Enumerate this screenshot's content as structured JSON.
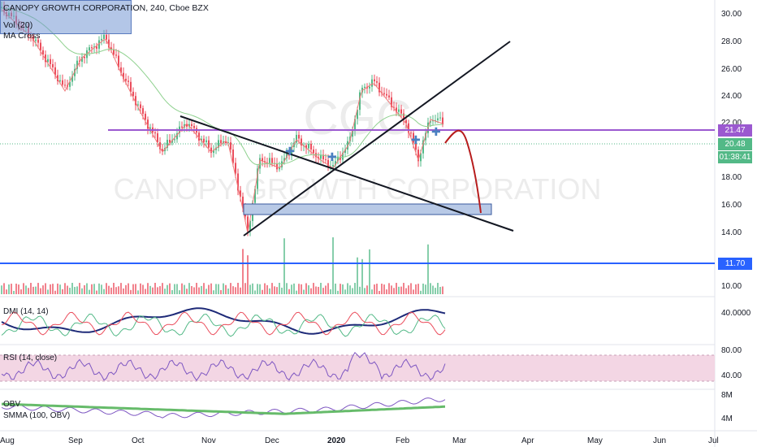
{
  "header": {
    "symbol_title": "CANOPY GROWTH CORPORATION, 240, Cboe BZX",
    "indicator_1": "Vol (20)",
    "indicator_2": "MA Cross"
  },
  "watermark": {
    "ticker": "CGC",
    "name": "CANOPY GROWTH CORPORATION"
  },
  "price_axis": {
    "labels": [
      "30.00",
      "28.00",
      "26.00",
      "24.00",
      "22.00",
      "18.00",
      "16.00",
      "14.00",
      "10.00"
    ],
    "tag_resistance": "21.47",
    "tag_last": "20.48",
    "tag_countdown": "01:38:41",
    "tag_support": "11.70"
  },
  "panes": {
    "dmi_label": "DMI (14, 14)",
    "dmi_axis": "40.0000",
    "rsi_label": "RSI (14, close)",
    "rsi_axis_top": "80.00",
    "rsi_axis_bottom": "40.00",
    "obv_label": "OBV",
    "obv_ma_label": "SMMA (100, OBV)",
    "obv_axis_top": "8M",
    "obv_axis_bottom": "4M"
  },
  "time_axis": {
    "labels": [
      "Aug",
      "Sep",
      "Oct",
      "Nov",
      "Dec",
      "2020",
      "Feb",
      "Mar",
      "Apr",
      "May",
      "Jun",
      "Jul"
    ]
  },
  "colors": {
    "up": "#53b987",
    "down": "#eb4d5c",
    "resistance_line": "#9b59d0",
    "support_line": "#2962ff",
    "projection": "#b71c1c",
    "rsi_band": "#f3d6e4",
    "obv_ma": "#66bb6a",
    "dmi_adx": "#1e2a78"
  }
}
